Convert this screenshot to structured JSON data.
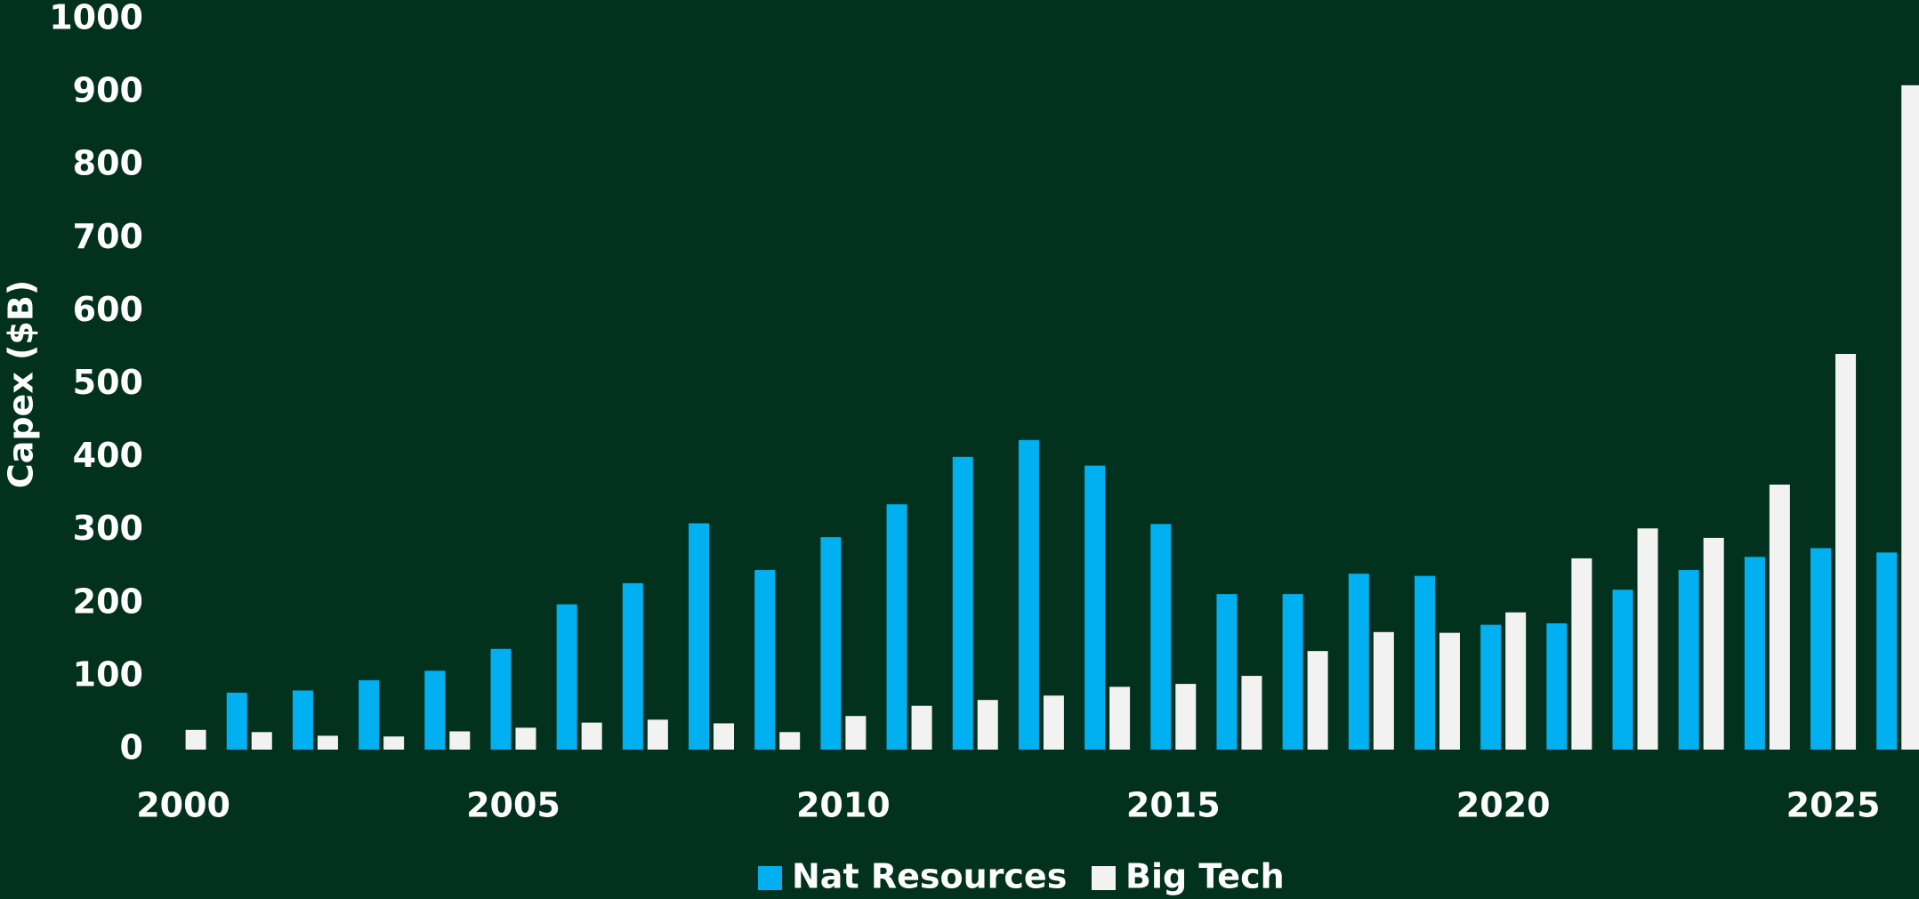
{
  "chart_data": {
    "type": "bar",
    "ylabel": "Capex ($B)",
    "x": [
      2000,
      2001,
      2002,
      2003,
      2004,
      2005,
      2006,
      2007,
      2008,
      2009,
      2010,
      2011,
      2012,
      2013,
      2014,
      2015,
      2016,
      2017,
      2018,
      2019,
      2020,
      2021,
      2022,
      2023,
      2024,
      2025,
      2026
    ],
    "series": [
      {
        "name": "Nat Resources",
        "color": "#00b0f0",
        "values": [
          null,
          78,
          81,
          95,
          108,
          138,
          199,
          228,
          310,
          246,
          291,
          336,
          401,
          424,
          389,
          309,
          213,
          213,
          241,
          238,
          171,
          173,
          219,
          246,
          264,
          276,
          270
        ]
      },
      {
        "name": "Big Tech",
        "color": "#f2f2f2",
        "values": [
          27,
          24,
          19,
          18,
          25,
          30,
          37,
          41,
          36,
          24,
          46,
          60,
          68,
          74,
          86,
          90,
          101,
          135,
          161,
          160,
          188,
          262,
          303,
          290,
          363,
          542,
          910
        ]
      }
    ],
    "xlim": [
      1999.5,
      2026.3
    ],
    "xticks": [
      2000,
      2005,
      2010,
      2015,
      2020,
      2025
    ],
    "ylim": [
      0,
      1000
    ],
    "yticks": [
      0,
      100,
      200,
      300,
      400,
      500,
      600,
      700,
      800,
      900,
      1000
    ],
    "grid": false,
    "legend": "bottom"
  }
}
